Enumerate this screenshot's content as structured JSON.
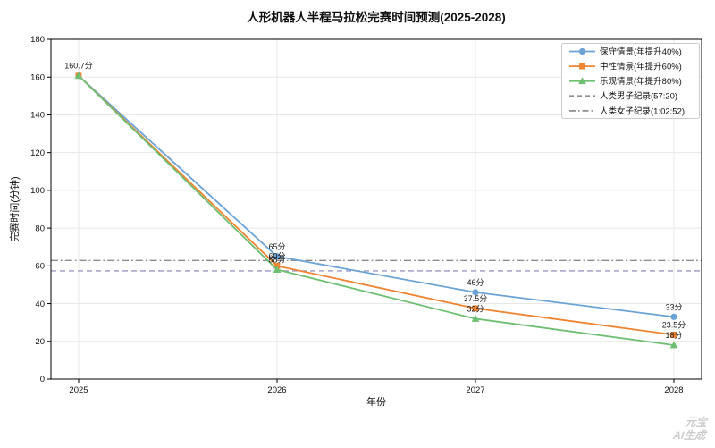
{
  "watermark": {
    "line1": "元宝",
    "line2": "AI生成"
  },
  "chart_data": {
    "type": "line",
    "title": "人形机器人半程马拉松完赛时间预测(2025-2028)",
    "xlabel": "年份",
    "ylabel": "完赛时间(分钟)",
    "x_tick_labels": [
      "2025",
      "2026",
      "2027",
      "2028"
    ],
    "x": [
      2025,
      2026,
      2027,
      2028
    ],
    "ylim": [
      0,
      180
    ],
    "yticks": [
      0,
      20,
      40,
      60,
      80,
      100,
      120,
      140,
      160,
      180
    ],
    "grid": true,
    "legend_position": "upper right",
    "annotation_color": "#1a1a1a",
    "axis_color": "#000000",
    "grid_color": "#e8e8e8",
    "series": [
      {
        "name": "保守情景(年提升40%)",
        "color": "#6ba3d6",
        "marker": "circle",
        "values": [
          160.7,
          65,
          46,
          33
        ],
        "point_labels": [
          "160.7分",
          "65分",
          "46分",
          "33分"
        ]
      },
      {
        "name": "中性情景(年提升60%)",
        "color": "#ef8432",
        "marker": "square",
        "values": [
          160.7,
          60,
          37.5,
          23.5
        ],
        "point_labels": [
          null,
          "60分",
          "37.5分",
          "23.5分"
        ]
      },
      {
        "name": "乐观情景(年提升80%)",
        "color": "#6fbf73",
        "marker": "triangle",
        "values": [
          160.7,
          58,
          32,
          18
        ],
        "point_labels": [
          null,
          "58分",
          "32分",
          "18分"
        ]
      }
    ],
    "reference_lines": [
      {
        "name": "人类男子纪录(57:20)",
        "value": 57.33,
        "style": "dashed",
        "color": "#9a98c2"
      },
      {
        "name": "人类女子纪录(1:02:52)",
        "value": 62.87,
        "style": "dashdot",
        "color": "#8c8c8c"
      }
    ]
  }
}
